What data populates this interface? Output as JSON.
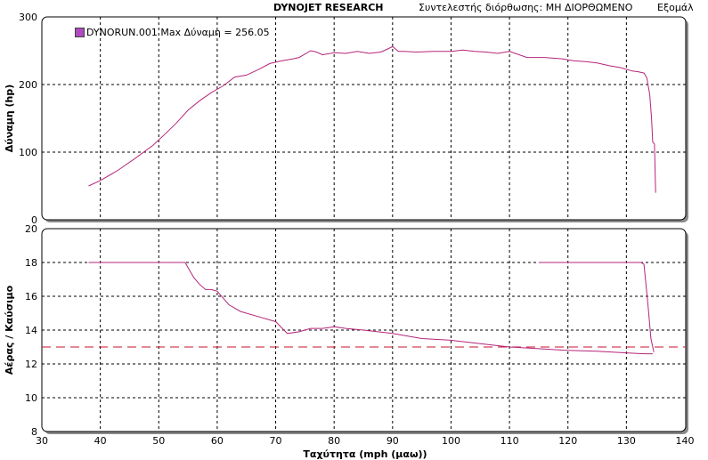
{
  "header": {
    "company": "DYNOJET RESEARCH",
    "correction": "Συντελεστής διόρθωσης: ΜΗ ΔΙΟΡΘΩΜΕΝΟ",
    "smoothing": "Εξομάλ"
  },
  "legend": {
    "label": "DYNORUN.001 Max Δύναμη  = 256.05",
    "color": "#b04ac0"
  },
  "colors": {
    "curve": "#b5257a",
    "grid": "#000000",
    "reference": "#c8102e",
    "frame": "#000000"
  },
  "chart_data": [
    {
      "type": "line",
      "ylabel": "Δύναμη  (hp)",
      "xlabel": "",
      "xlim": [
        30,
        140
      ],
      "ylim": [
        0,
        300
      ],
      "x_ticks": [
        30,
        40,
        50,
        60,
        70,
        80,
        90,
        100,
        110,
        120,
        130,
        140
      ],
      "y_ticks": [
        0,
        100,
        200,
        300
      ],
      "grid": true,
      "series": [
        {
          "name": "DYNORUN.001",
          "x": [
            38,
            40,
            43,
            46,
            49,
            51,
            53,
            55,
            57,
            59,
            61,
            63,
            65,
            67,
            69,
            71,
            73,
            74,
            75,
            76,
            77,
            78,
            80,
            82,
            84,
            86,
            88,
            89,
            90,
            91,
            92,
            94,
            97,
            100,
            102,
            104,
            106,
            108,
            110,
            113,
            116,
            119,
            121,
            123,
            125,
            127,
            129,
            131,
            132,
            133,
            133.5,
            134,
            134.3,
            134.5,
            134.8,
            135
          ],
          "y": [
            50,
            58,
            73,
            91,
            110,
            126,
            143,
            162,
            176,
            188,
            198,
            211,
            214,
            222,
            231,
            235,
            238,
            240,
            245,
            250,
            248,
            244,
            247,
            246,
            249,
            246,
            248,
            252,
            256,
            249,
            249,
            248,
            249,
            249,
            251,
            249,
            248,
            246,
            249,
            240,
            240,
            238,
            235,
            234,
            232,
            228,
            225,
            220,
            219,
            217,
            210,
            185,
            150,
            115,
            112,
            40
          ]
        }
      ]
    },
    {
      "type": "line",
      "ylabel": "Αέρας / Καύσιμο",
      "xlabel": "Ταχύτητα  (mph (μαω))",
      "xlim": [
        30,
        140
      ],
      "ylim": [
        8,
        20
      ],
      "x_ticks": [
        30,
        40,
        50,
        60,
        70,
        80,
        90,
        100,
        110,
        120,
        130,
        140
      ],
      "y_ticks": [
        8,
        10,
        12,
        14,
        16,
        18,
        20
      ],
      "grid": true,
      "reference_line": {
        "y": 13.0,
        "style": "dashed"
      },
      "series": [
        {
          "name": "DYNORUN.001",
          "segments": [
            {
              "x": [
                38,
                45,
                50,
                54.5,
                56,
                57,
                58,
                59,
                60,
                61,
                62,
                64,
                67,
                70,
                72,
                74,
                76,
                78,
                80,
                82,
                85,
                90,
                95,
                100,
                105,
                110,
                115,
                120,
                125,
                130,
                133,
                134.5
              ],
              "y": [
                18,
                18,
                18,
                18,
                17.1,
                16.7,
                16.4,
                16.4,
                16.3,
                15.9,
                15.5,
                15.1,
                14.8,
                14.5,
                13.8,
                13.9,
                14.1,
                14.1,
                14.2,
                14.1,
                14.0,
                13.8,
                13.5,
                13.4,
                13.2,
                13.0,
                12.9,
                12.8,
                12.75,
                12.65,
                12.6,
                12.6
              ]
            },
            {
              "x": [
                115,
                120,
                125,
                130,
                132.5,
                133,
                133.7,
                134.2,
                134.7
              ],
              "y": [
                18,
                18,
                18,
                18,
                18,
                17.9,
                15.5,
                13.5,
                12.7
              ]
            }
          ]
        }
      ]
    }
  ]
}
